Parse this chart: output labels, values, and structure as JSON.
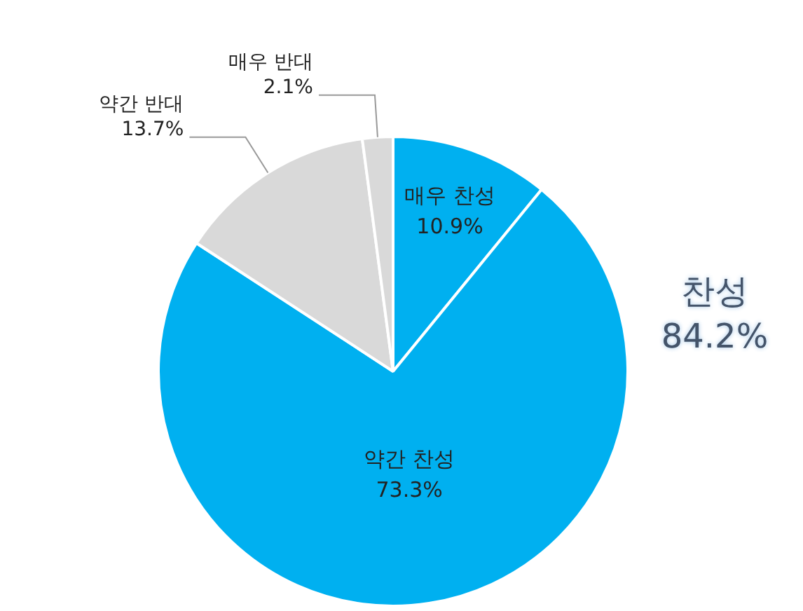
{
  "chart_data": {
    "type": "pie",
    "categories": [
      "매우 찬성",
      "약간 찬성",
      "약간 반대",
      "매우 반대"
    ],
    "values": [
      10.9,
      73.3,
      13.7,
      2.1
    ],
    "colors": [
      "#00b0f0",
      "#00b0f0",
      "#d9d9d9",
      "#d9d9d9"
    ],
    "value_labels": [
      "10.9%",
      "73.3%",
      "13.7%",
      "2.1%"
    ],
    "annotations": [
      "찬성\n84.2%"
    ]
  }
}
